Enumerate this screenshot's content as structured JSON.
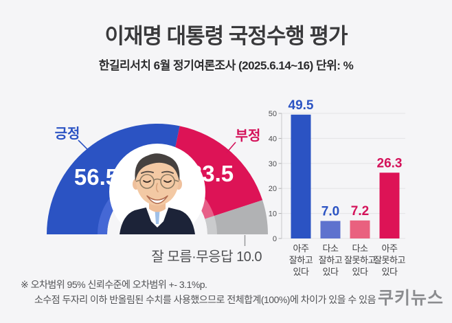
{
  "header": {
    "title": "이재명 대통령 국정수행 평가",
    "subtitle": "한길리서치 6월 정기여론조사 (2025.6.14~16) 단위: %"
  },
  "gauge": {
    "positive_label": "긍정",
    "positive_value": "56.5",
    "negative_label": "부정",
    "negative_value": "33.5",
    "unknown_label": "잘 모름·무응답 10.0"
  },
  "chart_data": [
    {
      "type": "pie",
      "subtype": "semicircle-donut-gauge",
      "title": "이재명 대통령 국정수행 평가",
      "unit": "%",
      "legend_position": "callout-labels",
      "slices": [
        {
          "label": "긍정",
          "value": 56.5,
          "color": "#2b53c3",
          "light": "#4568d5",
          "label_color": "#2b53c3"
        },
        {
          "label": "부정",
          "value": 33.5,
          "color": "#dd1356",
          "light": "#e75f88",
          "label_color": "#d4125a"
        },
        {
          "label": "잘 모름·무응답",
          "value": 10.0,
          "color": "#b1b2b4",
          "light": "#cacbcd",
          "label_color": "#4e4f52"
        }
      ]
    },
    {
      "type": "bar",
      "categories": [
        "아주 잘하고 있다",
        "다소 잘하고 있다",
        "다소 잘못하고 있다",
        "아주 잘못하고 있다"
      ],
      "category_lines": [
        [
          "아주",
          "잘하고",
          "있다"
        ],
        [
          "다소",
          "잘하고",
          "있다"
        ],
        [
          "다소",
          "잘못하고",
          "있다"
        ],
        [
          "아주",
          "잘못하고",
          "있다"
        ]
      ],
      "values": [
        49.5,
        7.0,
        7.2,
        26.3
      ],
      "bar_colors": [
        "#2b53c3",
        "#5e72ce",
        "#e9617f",
        "#dd1356"
      ],
      "value_label_colors": [
        "#2b53c3",
        "#2b53c3",
        "#d4125a",
        "#d4125a"
      ],
      "xlabel": "",
      "ylabel": "",
      "ylim": [
        0,
        50
      ],
      "yticks": [
        0,
        10,
        20,
        30,
        40,
        50
      ],
      "grid": true,
      "legend_position": "none"
    }
  ],
  "footer": {
    "note1": "※ 오차범위 95% 신뢰수준에 오차범위 +- 3.1%p.",
    "note2": "소수점 두자리 이하 반올림된 수치를 사용했으므로 전체합계(100%)에 차이가 있을 수 있음",
    "logo": "쿠키뉴스"
  },
  "colors": {
    "background": "#f5f5f7",
    "title_text": "#39393b",
    "positive_blue": "#2b53c3",
    "negative_crimson": "#dd1356",
    "unknown_gray": "#b1b2b4",
    "note_gray": "#525356",
    "logo_gray": "#8b8c8f",
    "axis_text": "#4a4a4d",
    "grid_line": "#e3e3e5"
  }
}
